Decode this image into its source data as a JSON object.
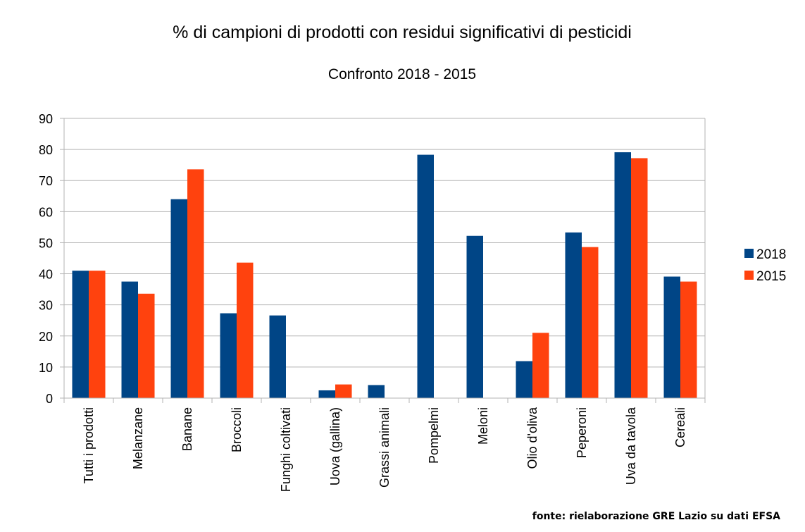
{
  "chart_data": {
    "type": "bar",
    "title": "% di campioni di prodotti con residui significativi di pesticidi",
    "subtitle": "Confronto 2018 - 2015",
    "xlabel": "",
    "ylabel": "",
    "ylim": [
      0,
      90
    ],
    "yticks": [
      0,
      10,
      20,
      30,
      40,
      50,
      60,
      70,
      80,
      90
    ],
    "grid": true,
    "legend_position": "right",
    "categories": [
      "Tutti i prodotti",
      "Melanzane",
      "Banane",
      "Broccoli",
      "Funghi coltivati",
      "Uova (gallina)",
      "Grassi animali",
      "Pompelmi",
      "Meloni",
      "Olio d'oliva",
      "Peperoni",
      "Uva da tavola",
      "Cereali"
    ],
    "series": [
      {
        "name": "2018",
        "color": "#004586",
        "values": [
          41,
          37.5,
          64,
          27.3,
          26.6,
          2.5,
          4.2,
          78.3,
          52.2,
          11.9,
          53.3,
          79.1,
          39.1
        ]
      },
      {
        "name": "2015",
        "color": "#ff420e",
        "values": [
          41,
          33.6,
          73.6,
          43.6,
          null,
          4.4,
          null,
          null,
          null,
          21,
          48.6,
          77.2,
          37.5
        ]
      }
    ],
    "source": "fonte: rielaborazione GRE Lazio su dati EFSA"
  }
}
